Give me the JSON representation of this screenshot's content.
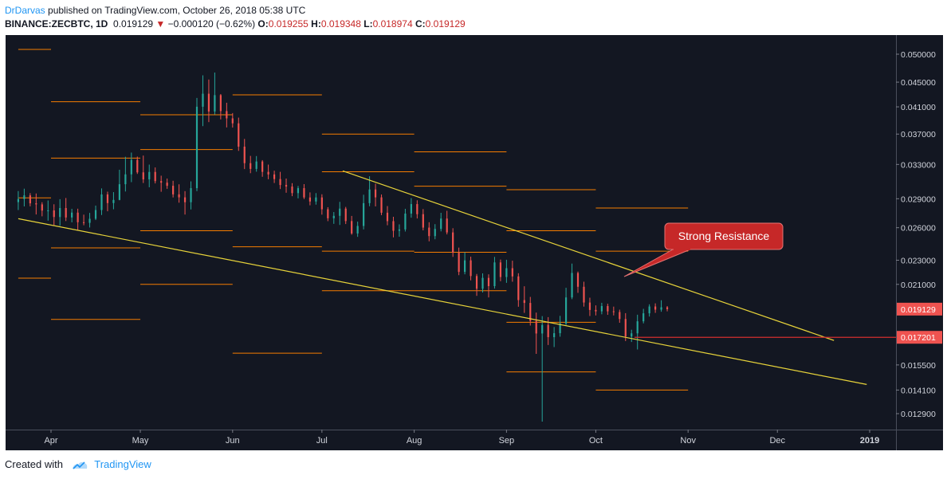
{
  "header": {
    "author": "DrDarvas",
    "published_text": "published on TradingView.com, October 26, 2018 05:38 UTC"
  },
  "symbol": {
    "pair": "BINANCE:ZECBTC, 1D",
    "last": "0.019129",
    "change_arrow": "▼",
    "change": "−0.000120 (−0.62%)",
    "o_label": "O:",
    "o": "0.019255",
    "h_label": "H:",
    "h": "0.019348",
    "l_label": "L:",
    "l": "0.018974",
    "c_label": "C:",
    "c": "0.019129"
  },
  "footer": {
    "created_with": "Created with",
    "brand": "TradingView"
  },
  "colors": {
    "background": "#131722",
    "bull": "#26a69a",
    "bear": "#ef5350",
    "trendline": "#e7d33a",
    "level": "#f57c00",
    "support_line": "#d32f2f",
    "price_tag": "#ef5350",
    "callout_fill": "#c62828"
  },
  "chart_data": {
    "type": "candlestick",
    "y_scale": "log",
    "ylim": [
      0.0119,
      0.0525
    ],
    "y_ticks": [
      "0.050000",
      "0.045000",
      "0.041000",
      "0.037000",
      "0.033000",
      "0.029000",
      "0.026000",
      "0.023000",
      "0.021000",
      "0.019129",
      "0.017201",
      "0.015500",
      "0.014100",
      "0.012900"
    ],
    "x_ticks": [
      "Apr",
      "May",
      "Jun",
      "Jul",
      "Aug",
      "Sep",
      "Oct",
      "Nov",
      "Dec",
      "2019"
    ],
    "annotation": "Strong Resistance",
    "price_tags": [
      {
        "label": "0.019129",
        "value": 0.019129
      },
      {
        "label": "0.017201",
        "value": 0.017201
      }
    ],
    "support_line_value": 0.017201,
    "trendlines": [
      {
        "name": "upper",
        "from": {
          "date": "2018-07-08",
          "price": 0.0322
        },
        "to": {
          "date": "2018-12-20",
          "price": 0.017
        }
      },
      {
        "name": "lower",
        "from": {
          "date": "2018-03-21",
          "price": 0.0269
        },
        "to": {
          "date": "2018-12-31",
          "price": 0.0144
        }
      }
    ],
    "pivot_levels": [
      {
        "start": "2018-03-21",
        "end": "2018-04-01",
        "values": [
          0.0509,
          0.0291,
          0.0215
        ]
      },
      {
        "start": "2018-04-01",
        "end": "2018-05-01",
        "values": [
          0.0418,
          0.0338,
          0.0241,
          0.0184
        ]
      },
      {
        "start": "2018-05-01",
        "end": "2018-06-01",
        "values": [
          0.0398,
          0.0349,
          0.0257,
          0.021
        ]
      },
      {
        "start": "2018-06-01",
        "end": "2018-07-01",
        "values": [
          0.0429,
          0.0242,
          0.0162
        ]
      },
      {
        "start": "2018-07-01",
        "end": "2018-08-01",
        "values": [
          0.037,
          0.0321,
          0.0238,
          0.0205
        ]
      },
      {
        "start": "2018-08-01",
        "end": "2018-09-01",
        "values": [
          0.0346,
          0.0304,
          0.0237,
          0.0205
        ]
      },
      {
        "start": "2018-09-01",
        "end": "2018-10-01",
        "values": [
          0.03,
          0.0257,
          0.0182,
          0.0151
        ]
      },
      {
        "start": "2018-10-01",
        "end": "2018-11-01",
        "values": [
          0.028,
          0.0238,
          0.0141
        ]
      }
    ],
    "candles": [
      [
        "2018-03-21",
        0.02863,
        0.02985,
        0.02779,
        0.02897
      ],
      [
        "2018-03-23",
        0.02897,
        0.03012,
        0.02817,
        0.02937
      ],
      [
        "2018-03-25",
        0.02937,
        0.02962,
        0.02818,
        0.0285
      ],
      [
        "2018-03-27",
        0.0285,
        0.02958,
        0.02733,
        0.02839
      ],
      [
        "2018-03-29",
        0.02839,
        0.02862,
        0.02714,
        0.02773
      ],
      [
        "2018-03-31",
        0.02773,
        0.02881,
        0.0267,
        0.02775
      ],
      [
        "2018-04-02",
        0.02775,
        0.0284,
        0.02626,
        0.02707
      ],
      [
        "2018-04-04",
        0.02707,
        0.02895,
        0.02619,
        0.028
      ],
      [
        "2018-04-06",
        0.028,
        0.02908,
        0.02666,
        0.02702
      ],
      [
        "2018-04-08",
        0.02702,
        0.02792,
        0.02653,
        0.02752
      ],
      [
        "2018-04-10",
        0.02752,
        0.02793,
        0.02575,
        0.02654
      ],
      [
        "2018-04-12",
        0.02654,
        0.02731,
        0.02624,
        0.02648
      ],
      [
        "2018-04-14",
        0.02648,
        0.02749,
        0.02602,
        0.02689
      ],
      [
        "2018-04-16",
        0.02689,
        0.02826,
        0.02676,
        0.02779
      ],
      [
        "2018-04-18",
        0.02779,
        0.03015,
        0.02727,
        0.02947
      ],
      [
        "2018-04-20",
        0.02947,
        0.02978,
        0.02766,
        0.02853
      ],
      [
        "2018-04-22",
        0.02853,
        0.02973,
        0.02787,
        0.02887
      ],
      [
        "2018-04-24",
        0.02887,
        0.03235,
        0.02883,
        0.03063
      ],
      [
        "2018-04-26",
        0.03063,
        0.03397,
        0.0298,
        0.03179
      ],
      [
        "2018-04-28",
        0.03179,
        0.03451,
        0.03087,
        0.03357
      ],
      [
        "2018-04-30",
        0.03357,
        0.03399,
        0.03184,
        0.03203
      ],
      [
        "2018-05-02",
        0.03203,
        0.03412,
        0.03077,
        0.03119
      ],
      [
        "2018-05-04",
        0.03119,
        0.03298,
        0.03028,
        0.03208
      ],
      [
        "2018-05-06",
        0.03208,
        0.03263,
        0.03072,
        0.03099
      ],
      [
        "2018-05-08",
        0.03099,
        0.03163,
        0.02977,
        0.03081
      ],
      [
        "2018-05-10",
        0.03081,
        0.03129,
        0.0301,
        0.03045
      ],
      [
        "2018-05-12",
        0.03045,
        0.03103,
        0.02914,
        0.02948
      ],
      [
        "2018-05-14",
        0.02948,
        0.03062,
        0.02857,
        0.02915
      ],
      [
        "2018-05-16",
        0.02915,
        0.02984,
        0.02732,
        0.02862
      ],
      [
        "2018-05-18",
        0.02862,
        0.03096,
        0.02785,
        0.03018
      ],
      [
        "2018-05-20",
        0.03018,
        0.0424,
        0.02984,
        0.04102
      ],
      [
        "2018-05-22",
        0.04102,
        0.04617,
        0.03813,
        0.04308
      ],
      [
        "2018-05-24",
        0.04308,
        0.04545,
        0.03871,
        0.04029
      ],
      [
        "2018-05-26",
        0.04029,
        0.04666,
        0.03983,
        0.04285
      ],
      [
        "2018-05-28",
        0.04285,
        0.04303,
        0.0391,
        0.04035
      ],
      [
        "2018-05-30",
        0.04035,
        0.04164,
        0.03794,
        0.03926
      ],
      [
        "2018-06-01",
        0.03926,
        0.04005,
        0.03792,
        0.03853
      ],
      [
        "2018-06-03",
        0.03853,
        0.03937,
        0.03473,
        0.03529
      ],
      [
        "2018-06-05",
        0.03529,
        0.03633,
        0.03243,
        0.03316
      ],
      [
        "2018-06-07",
        0.03316,
        0.03408,
        0.03193,
        0.03245
      ],
      [
        "2018-06-09",
        0.03245,
        0.03406,
        0.03211,
        0.03337
      ],
      [
        "2018-06-11",
        0.03337,
        0.03354,
        0.0315,
        0.03209
      ],
      [
        "2018-06-13",
        0.03209,
        0.03298,
        0.03121,
        0.03178
      ],
      [
        "2018-06-15",
        0.03178,
        0.03223,
        0.03077,
        0.03123
      ],
      [
        "2018-06-17",
        0.03123,
        0.03209,
        0.03008,
        0.03054
      ],
      [
        "2018-06-19",
        0.03054,
        0.03129,
        0.02966,
        0.03036
      ],
      [
        "2018-06-21",
        0.03036,
        0.03075,
        0.02928,
        0.02962
      ],
      [
        "2018-06-23",
        0.02962,
        0.03043,
        0.02904,
        0.03018
      ],
      [
        "2018-06-25",
        0.03018,
        0.03064,
        0.02896,
        0.02914
      ],
      [
        "2018-06-27",
        0.02914,
        0.0297,
        0.02829,
        0.0287
      ],
      [
        "2018-06-29",
        0.0287,
        0.02962,
        0.02836,
        0.02914
      ],
      [
        "2018-07-01",
        0.02914,
        0.02949,
        0.02731,
        0.02787
      ],
      [
        "2018-07-03",
        0.02787,
        0.02809,
        0.02665,
        0.02694
      ],
      [
        "2018-07-05",
        0.02694,
        0.02758,
        0.02638,
        0.02719
      ],
      [
        "2018-07-07",
        0.02719,
        0.02866,
        0.02627,
        0.02794
      ],
      [
        "2018-07-09",
        0.02794,
        0.02812,
        0.02636,
        0.02666
      ],
      [
        "2018-07-11",
        0.02666,
        0.02718,
        0.02532,
        0.02544
      ],
      [
        "2018-07-13",
        0.02544,
        0.0266,
        0.02512,
        0.02617
      ],
      [
        "2018-07-15",
        0.02617,
        0.02944,
        0.02583,
        0.02852
      ],
      [
        "2018-07-17",
        0.02852,
        0.03156,
        0.02819,
        0.03003
      ],
      [
        "2018-07-19",
        0.03003,
        0.03069,
        0.02817,
        0.02915
      ],
      [
        "2018-07-21",
        0.02915,
        0.02947,
        0.02726,
        0.02751
      ],
      [
        "2018-07-23",
        0.02751,
        0.02821,
        0.02624,
        0.02665
      ],
      [
        "2018-07-25",
        0.02665,
        0.02709,
        0.02507,
        0.0257
      ],
      [
        "2018-07-27",
        0.0257,
        0.02633,
        0.02513,
        0.02583
      ],
      [
        "2018-07-29",
        0.02583,
        0.02792,
        0.02563,
        0.02742
      ],
      [
        "2018-07-31",
        0.02742,
        0.02907,
        0.027,
        0.02842
      ],
      [
        "2018-08-02",
        0.02842,
        0.02883,
        0.02692,
        0.02736
      ],
      [
        "2018-08-04",
        0.02736,
        0.02789,
        0.02574,
        0.02601
      ],
      [
        "2018-08-06",
        0.02601,
        0.02654,
        0.0247,
        0.02519
      ],
      [
        "2018-08-08",
        0.02519,
        0.02635,
        0.02489,
        0.02588
      ],
      [
        "2018-08-10",
        0.02588,
        0.0275,
        0.02564,
        0.02691
      ],
      [
        "2018-08-12",
        0.02691,
        0.02771,
        0.02535,
        0.02554
      ],
      [
        "2018-08-14",
        0.02554,
        0.02595,
        0.02329,
        0.02366
      ],
      [
        "2018-08-16",
        0.02366,
        0.02412,
        0.02174,
        0.02201
      ],
      [
        "2018-08-18",
        0.02201,
        0.0237,
        0.02181,
        0.02299
      ],
      [
        "2018-08-20",
        0.02299,
        0.02331,
        0.02132,
        0.02167
      ],
      [
        "2018-08-22",
        0.02167,
        0.02184,
        0.02011,
        0.02066
      ],
      [
        "2018-08-24",
        0.02066,
        0.02189,
        0.02037,
        0.02152
      ],
      [
        "2018-08-26",
        0.02152,
        0.02181,
        0.01999,
        0.02086
      ],
      [
        "2018-08-28",
        0.02086,
        0.02329,
        0.02067,
        0.02281
      ],
      [
        "2018-08-30",
        0.02281,
        0.02306,
        0.02125,
        0.02159
      ],
      [
        "2018-09-01",
        0.02159,
        0.02304,
        0.02112,
        0.02232
      ],
      [
        "2018-09-03",
        0.02232,
        0.02296,
        0.02121,
        0.02164
      ],
      [
        "2018-09-05",
        0.02164,
        0.0219,
        0.0193,
        0.01979
      ],
      [
        "2018-09-07",
        0.01979,
        0.02085,
        0.01886,
        0.01958
      ],
      [
        "2018-09-09",
        0.01958,
        0.02003,
        0.01798,
        0.0183
      ],
      [
        "2018-09-11",
        0.0183,
        0.01888,
        0.01616,
        0.01745
      ],
      [
        "2018-09-13",
        0.01745,
        0.01863,
        0.01252,
        0.01802
      ],
      [
        "2018-09-15",
        0.01802,
        0.01856,
        0.01671,
        0.01721
      ],
      [
        "2018-09-17",
        0.01721,
        0.01788,
        0.01658,
        0.01747
      ],
      [
        "2018-09-19",
        0.01747,
        0.01865,
        0.01724,
        0.01812
      ],
      [
        "2018-09-21",
        0.01812,
        0.02073,
        0.01801,
        0.01999
      ],
      [
        "2018-09-23",
        0.01999,
        0.02271,
        0.01986,
        0.02192
      ],
      [
        "2018-09-25",
        0.02192,
        0.02204,
        0.02034,
        0.02081
      ],
      [
        "2018-09-27",
        0.02081,
        0.02121,
        0.01931,
        0.01961
      ],
      [
        "2018-09-29",
        0.01961,
        0.01997,
        0.01864,
        0.01907
      ],
      [
        "2018-10-01",
        0.01907,
        0.0194,
        0.01868,
        0.01897
      ],
      [
        "2018-10-03",
        0.01897,
        0.01959,
        0.01876,
        0.01935
      ],
      [
        "2018-10-05",
        0.01935,
        0.01952,
        0.01872,
        0.01897
      ],
      [
        "2018-10-07",
        0.01897,
        0.01931,
        0.01868,
        0.01892
      ],
      [
        "2018-10-09",
        0.01892,
        0.01909,
        0.01817,
        0.01843
      ],
      [
        "2018-10-11",
        0.01843,
        0.01884,
        0.01696,
        0.01725
      ],
      [
        "2018-10-13",
        0.01725,
        0.0177,
        0.0169,
        0.01746
      ],
      [
        "2018-10-15",
        0.01746,
        0.01873,
        0.01643,
        0.01827
      ],
      [
        "2018-10-17",
        0.01827,
        0.01915,
        0.01813,
        0.01883
      ],
      [
        "2018-10-19",
        0.01883,
        0.01948,
        0.0186,
        0.01932
      ],
      [
        "2018-10-21",
        0.01932,
        0.01955,
        0.01886,
        0.01909
      ],
      [
        "2018-10-23",
        0.01909,
        0.01978,
        0.01894,
        0.01926
      ],
      [
        "2018-10-25",
        0.01926,
        0.01935,
        0.01897,
        0.01913
      ]
    ]
  }
}
